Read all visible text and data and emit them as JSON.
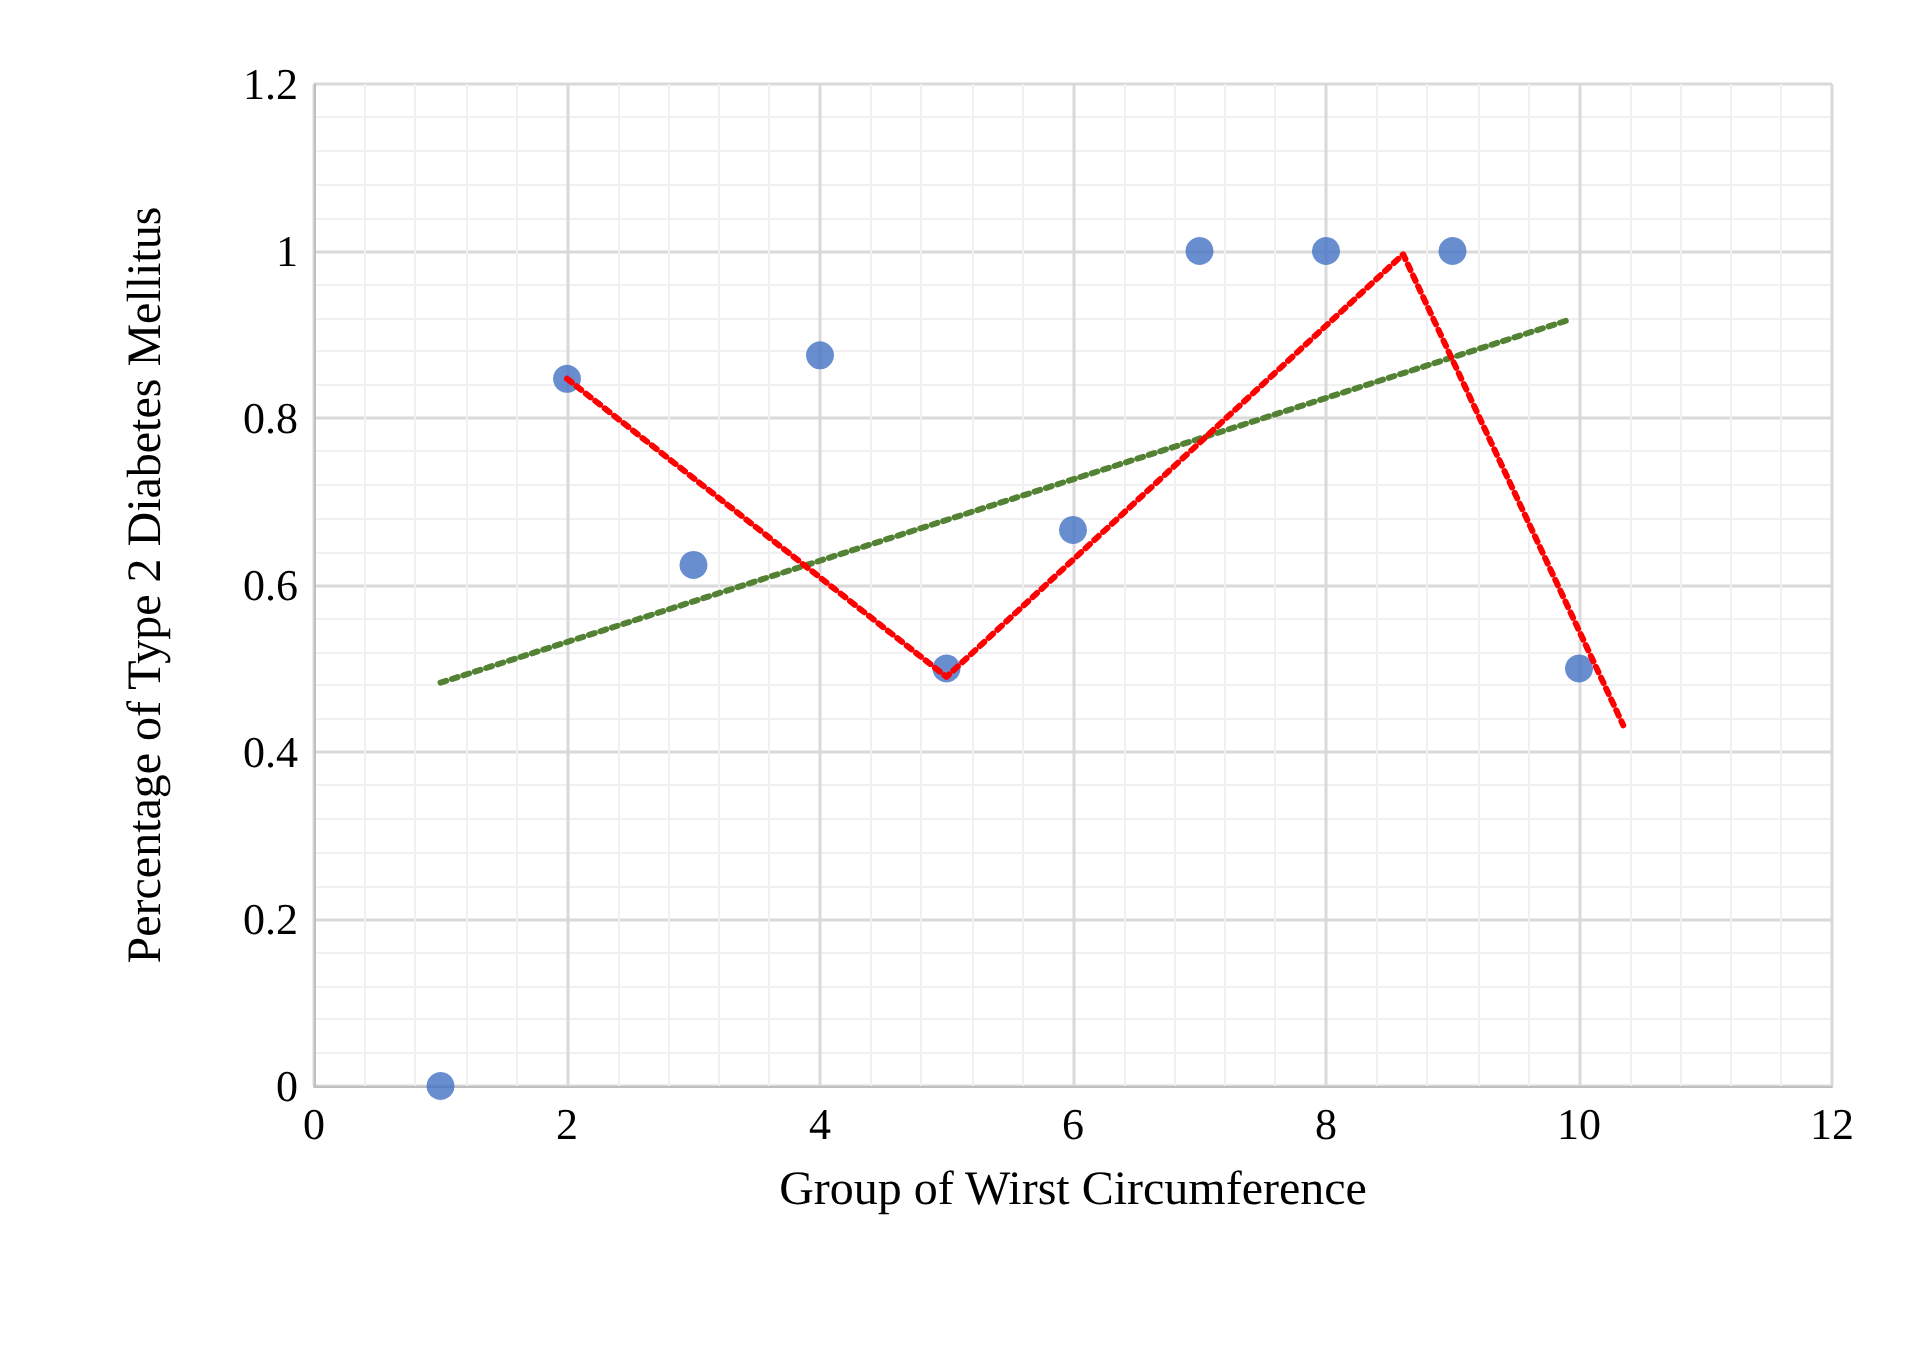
{
  "chart_data": {
    "type": "scatter",
    "xlabel": "Group of Wirst Circumference",
    "ylabel": "Percentage of Type 2 Diabetes Mellitus",
    "xlim": [
      0,
      12
    ],
    "xticks": [
      0,
      2,
      4,
      6,
      8,
      10,
      12
    ],
    "ylim": [
      0,
      1.2
    ],
    "yticks": [
      0,
      0.2,
      0.4,
      0.6,
      0.8,
      1,
      1.2
    ],
    "grid": true,
    "series": [
      {
        "color": "#4472c4",
        "marker": "circle",
        "x": [
          1,
          2,
          3,
          4,
          5,
          6,
          7,
          8,
          9,
          10
        ],
        "values": [
          0,
          0.847,
          0.624,
          0.875,
          0.5,
          0.666,
          1,
          1,
          1,
          0.5
        ]
      },
      {
        "type": "line",
        "color": "#548235",
        "marker": "none",
        "line_style": "dotted",
        "x": [
          1,
          9.91
        ],
        "values": [
          0.483,
          0.917
        ]
      },
      {
        "type": "line",
        "color": "#ff0000",
        "marker": "none",
        "line_style": "dotted",
        "x": [
          2,
          5,
          8.61,
          10.35
        ],
        "values": [
          0.847,
          0.49,
          0.996,
          0.432
        ]
      }
    ]
  }
}
